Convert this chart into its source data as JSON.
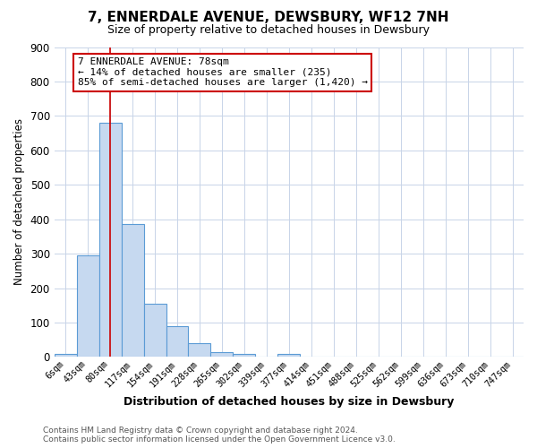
{
  "title": "7, ENNERDALE AVENUE, DEWSBURY, WF12 7NH",
  "subtitle": "Size of property relative to detached houses in Dewsbury",
  "xlabel": "Distribution of detached houses by size in Dewsbury",
  "ylabel": "Number of detached properties",
  "bar_labels": [
    "6sqm",
    "43sqm",
    "80sqm",
    "117sqm",
    "154sqm",
    "191sqm",
    "228sqm",
    "265sqm",
    "302sqm",
    "339sqm",
    "377sqm",
    "414sqm",
    "451sqm",
    "488sqm",
    "525sqm",
    "562sqm",
    "599sqm",
    "636sqm",
    "673sqm",
    "710sqm",
    "747sqm"
  ],
  "bar_values": [
    10,
    295,
    680,
    385,
    155,
    90,
    40,
    15,
    10,
    0,
    10,
    0,
    0,
    0,
    0,
    0,
    0,
    0,
    0,
    0,
    0
  ],
  "bar_color": "#c6d9f0",
  "bar_edge_color": "#5b9bd5",
  "ylim": [
    0,
    900
  ],
  "yticks": [
    0,
    100,
    200,
    300,
    400,
    500,
    600,
    700,
    800,
    900
  ],
  "property_line_x": 2,
  "property_line_color": "#cc0000",
  "annotation_title": "7 ENNERDALE AVENUE: 78sqm",
  "annotation_line1": "← 14% of detached houses are smaller (235)",
  "annotation_line2": "85% of semi-detached houses are larger (1,420) →",
  "annotation_box_color": "#cc0000",
  "footer_line1": "Contains HM Land Registry data © Crown copyright and database right 2024.",
  "footer_line2": "Contains public sector information licensed under the Open Government Licence v3.0.",
  "bg_color": "#ffffff",
  "grid_color": "#c8d4e8"
}
